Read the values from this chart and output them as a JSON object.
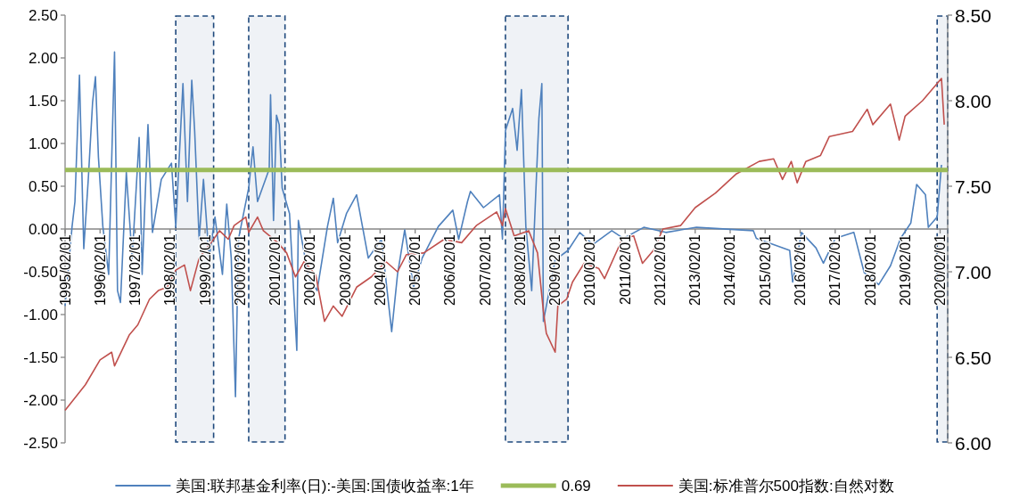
{
  "chart_data": {
    "type": "line",
    "xlim": [
      "1995-02-01",
      "2020-04-20"
    ],
    "xticks": [
      {
        "value": "1995-02-01",
        "label": "1995/02/01"
      },
      {
        "value": "1996-02-01",
        "label": "1996/02/01"
      },
      {
        "value": "1997-02-01",
        "label": "1997/02/01"
      },
      {
        "value": "1998-02-01",
        "label": "1998/02/01"
      },
      {
        "value": "1999-02-01",
        "label": "1999/02/01"
      },
      {
        "value": "2000-02-01",
        "label": "2000/02/01"
      },
      {
        "value": "2001-02-01",
        "label": "2001/02/01"
      },
      {
        "value": "2002-02-01",
        "label": "2002/02/01"
      },
      {
        "value": "2003-02-01",
        "label": "2003/02/01"
      },
      {
        "value": "2004-02-01",
        "label": "2004/02/01"
      },
      {
        "value": "2005-02-01",
        "label": "2005/02/01"
      },
      {
        "value": "2006-02-01",
        "label": "2006/02/01"
      },
      {
        "value": "2007-02-01",
        "label": "2007/02/01"
      },
      {
        "value": "2008-02-01",
        "label": "2008/02/01"
      },
      {
        "value": "2009-02-01",
        "label": "2009/02/01"
      },
      {
        "value": "2010-02-01",
        "label": "2010/02/01"
      },
      {
        "value": "2011-02-01",
        "label": "2011/02/01"
      },
      {
        "value": "2012-02-01",
        "label": "2012/02/01"
      },
      {
        "value": "2013-02-01",
        "label": "2013/02/01"
      },
      {
        "value": "2014-02-01",
        "label": "2014/02/01"
      },
      {
        "value": "2015-02-01",
        "label": "2015/02/01"
      },
      {
        "value": "2016-02-01",
        "label": "2016/02/01"
      },
      {
        "value": "2017-02-01",
        "label": "2017/02/01"
      },
      {
        "value": "2018-02-01",
        "label": "2018/02/01"
      },
      {
        "value": "2019-02-01",
        "label": "2019/02/01"
      },
      {
        "value": "2020-02-01",
        "label": "2020/02/01"
      }
    ],
    "ylim": [
      -2.5,
      2.5
    ],
    "yticks": [
      {
        "value": -2.5,
        "label": "-2.50"
      },
      {
        "value": -2,
        "label": "-2.00"
      },
      {
        "value": -1.5,
        "label": "-1.50"
      },
      {
        "value": -1,
        "label": "-1.00"
      },
      {
        "value": -0.5,
        "label": "-0.50"
      },
      {
        "value": 0,
        "label": "0.00"
      },
      {
        "value": 0.5,
        "label": "0.50"
      },
      {
        "value": 1,
        "label": "1.00"
      },
      {
        "value": 1.5,
        "label": "1.50"
      },
      {
        "value": 2,
        "label": "2.00"
      },
      {
        "value": 2.5,
        "label": "2.50"
      }
    ],
    "y2lim": [
      6,
      8.5
    ],
    "y2ticks": [
      {
        "value": 6,
        "label": "6.00"
      },
      {
        "value": 6.5,
        "label": "6.50"
      },
      {
        "value": 7,
        "label": "7.00"
      },
      {
        "value": 7.5,
        "label": "7.50"
      },
      {
        "value": 8,
        "label": "8.00"
      },
      {
        "value": 8.5,
        "label": "8.50"
      }
    ],
    "legend": "bottom",
    "ref_lines": [
      {
        "axis": "y",
        "value": 0.69,
        "label": "0.69",
        "color": "#9bbb59"
      }
    ],
    "bands": [
      {
        "axis": "x",
        "from": "1998-04-01",
        "to": "1999-05-01",
        "color": "#1f497d"
      },
      {
        "axis": "x",
        "from": "2000-05-01",
        "to": "2001-05-15",
        "color": "#1f497d"
      },
      {
        "axis": "x",
        "from": "2007-09-01",
        "to": "2009-06-15",
        "color": "#1f497d"
      },
      {
        "axis": "x",
        "from": "2020-01-01",
        "to": "2020-04-20",
        "color": "#1f497d"
      }
    ],
    "series": [
      {
        "name": "美国:联邦基金利率(日):-美国:国债收益率:1年",
        "color": "#4f81bd",
        "x": [
          "1995-02-01",
          "1995-04-15",
          "1995-05-15",
          "1995-07-01",
          "1995-08-15",
          "1995-10-01",
          "1995-11-15",
          "1995-12-15",
          "1996-01-15",
          "1996-03-01",
          "1996-05-01",
          "1996-07-01",
          "1996-08-01",
          "1996-09-01",
          "1996-11-01",
          "1997-01-01",
          "1997-03-15",
          "1997-04-15",
          "1997-06-15",
          "1997-08-01",
          "1997-11-01",
          "1998-02-15",
          "1998-04-01",
          "1998-06-15",
          "1998-08-01",
          "1998-09-15",
          "1998-10-15",
          "1998-12-01",
          "1999-01-15",
          "1999-03-15",
          "1999-05-15",
          "1999-08-01",
          "1999-09-15",
          "1999-11-01",
          "1999-12-15",
          "2000-01-15",
          "2000-05-01",
          "2000-06-15",
          "2000-08-01",
          "2000-10-01",
          "2000-12-01",
          "2000-12-15",
          "2001-01-15",
          "2001-02-15",
          "2001-03-15",
          "2001-04-15",
          "2001-07-01",
          "2001-09-15",
          "2001-10-01",
          "2002-01-15",
          "2002-04-15",
          "2002-08-01",
          "2002-10-01",
          "2002-11-15",
          "2003-02-15",
          "2003-06-01",
          "2003-08-01",
          "2003-10-01",
          "2004-02-15",
          "2004-06-01",
          "2004-08-01",
          "2004-10-15",
          "2005-01-15",
          "2005-04-15",
          "2005-10-01",
          "2006-03-01",
          "2006-05-01",
          "2006-08-01",
          "2006-09-01",
          "2007-01-15",
          "2007-07-01",
          "2007-08-01",
          "2007-09-01",
          "2007-11-15",
          "2008-01-01",
          "2008-02-15",
          "2008-04-01",
          "2008-06-01",
          "2008-08-15",
          "2008-09-15",
          "2008-10-01",
          "2009-02-01",
          "2009-06-15",
          "2009-10-15",
          "2010-03-01",
          "2010-09-15",
          "2011-01-15",
          "2011-08-15",
          "2012-04-01",
          "2013-02-15",
          "2014-10-01",
          "2014-11-01",
          "2015-10-15",
          "2015-11-15",
          "2016-02-15",
          "2016-07-15",
          "2016-10-01",
          "2017-02-01",
          "2017-08-15",
          "2017-12-01",
          "2018-05-01",
          "2018-09-01",
          "2018-12-15",
          "2019-04-01",
          "2019-06-01",
          "2019-09-01",
          "2019-10-01",
          "2020-01-01",
          "2020-02-15"
        ],
        "values": [
          -0.9,
          0.03,
          0.32,
          1.8,
          -0.23,
          0.58,
          1.48,
          1.78,
          0.84,
          0.03,
          -0.53,
          2.07,
          -0.72,
          -0.86,
          0.66,
          -0.34,
          1.07,
          -0.53,
          1.22,
          -0.04,
          0.58,
          0.77,
          0.03,
          1.7,
          0.32,
          1.74,
          1.15,
          -0.12,
          0.58,
          -0.34,
          0.14,
          -0.53,
          0.29,
          -0.34,
          -1.96,
          -0.12,
          0.48,
          0.96,
          0.32,
          0.51,
          0.7,
          1.57,
          0.1,
          1.33,
          1.22,
          0.48,
          0.18,
          -1.42,
          0.1,
          -0.56,
          -0.72,
          0.03,
          0.36,
          -0.16,
          0.18,
          0.4,
          0.03,
          -0.34,
          -0.12,
          -1.2,
          -0.53,
          -0.01,
          -0.68,
          -0.34,
          0.03,
          0.22,
          -0.12,
          0.32,
          0.44,
          0.25,
          0.4,
          -0.12,
          1.15,
          1.41,
          0.92,
          1.63,
          0.03,
          -0.72,
          1.29,
          1.7,
          -1.08,
          -0.36,
          -0.25,
          -0.04,
          -0.18,
          -0.02,
          -0.11,
          0.02,
          -0.04,
          0.02,
          -0.02,
          -0.11,
          -0.25,
          -0.62,
          -0.04,
          -0.22,
          -0.4,
          -0.11,
          -0.04,
          -0.51,
          -0.65,
          -0.43,
          -0.11,
          0.07,
          0.52,
          0.4,
          0.02,
          0.14,
          0.75
        ]
      },
      {
        "name": "美国:标准普尔500指数:自然对数",
        "color": "#c0504d",
        "axis": "y2",
        "x": [
          "1995-02-01",
          "1995-09-01",
          "1996-02-01",
          "1996-06-01",
          "1996-07-01",
          "1996-12-01",
          "1997-03-01",
          "1997-07-01",
          "1997-10-01",
          "1998-01-01",
          "1998-04-01",
          "1998-07-01",
          "1998-09-01",
          "1998-12-01",
          "1999-05-01",
          "1999-07-01",
          "1999-10-01",
          "1999-12-01",
          "2000-04-01",
          "2000-05-01",
          "2000-08-01",
          "2000-10-01",
          "2001-03-01",
          "2001-06-01",
          "2001-09-01",
          "2001-12-01",
          "2002-04-01",
          "2002-07-01",
          "2002-10-01",
          "2003-01-01",
          "2003-06-01",
          "2003-11-01",
          "2004-04-01",
          "2004-08-01",
          "2004-11-01",
          "2005-05-01",
          "2005-12-01",
          "2006-06-01",
          "2006-11-01",
          "2007-06-01",
          "2007-08-01",
          "2007-09-01",
          "2007-12-01",
          "2008-05-01",
          "2008-08-01",
          "2008-10-01",
          "2008-11-01",
          "2009-02-01",
          "2009-03-01",
          "2009-06-01",
          "2009-08-01",
          "2009-12-01",
          "2010-05-01",
          "2010-07-01",
          "2011-01-01",
          "2011-05-01",
          "2011-08-01",
          "2011-12-01",
          "2012-03-01",
          "2012-09-01",
          "2013-02-01",
          "2013-09-01",
          "2014-04-01",
          "2014-12-01",
          "2015-05-01",
          "2015-08-01",
          "2015-11-01",
          "2016-01-01",
          "2016-04-01",
          "2016-09-01",
          "2016-12-01",
          "2017-08-01",
          "2018-01-01",
          "2018-03-01",
          "2018-09-01",
          "2018-12-01",
          "2019-02-01",
          "2019-08-01",
          "2020-02-15",
          "2020-03-15"
        ],
        "values": [
          6.19,
          6.34,
          6.485,
          6.53,
          6.45,
          6.63,
          6.69,
          6.84,
          6.89,
          6.91,
          7.01,
          7.04,
          6.89,
          7.08,
          7.19,
          7.24,
          7.19,
          7.27,
          7.32,
          7.23,
          7.32,
          7.24,
          7.17,
          7.11,
          6.97,
          7.06,
          6.98,
          6.71,
          6.8,
          6.74,
          6.91,
          6.97,
          7.06,
          7.0,
          7.1,
          7.11,
          7.19,
          7.17,
          7.27,
          7.35,
          7.27,
          7.37,
          7.21,
          7.24,
          7.11,
          6.77,
          6.64,
          6.53,
          6.8,
          6.84,
          6.94,
          7.05,
          7.02,
          6.96,
          7.19,
          7.21,
          7.05,
          7.13,
          7.25,
          7.27,
          7.375,
          7.46,
          7.57,
          7.645,
          7.66,
          7.54,
          7.645,
          7.52,
          7.645,
          7.68,
          7.79,
          7.82,
          7.95,
          7.86,
          7.98,
          7.77,
          7.91,
          8.0,
          8.13,
          7.86
        ]
      }
    ]
  }
}
